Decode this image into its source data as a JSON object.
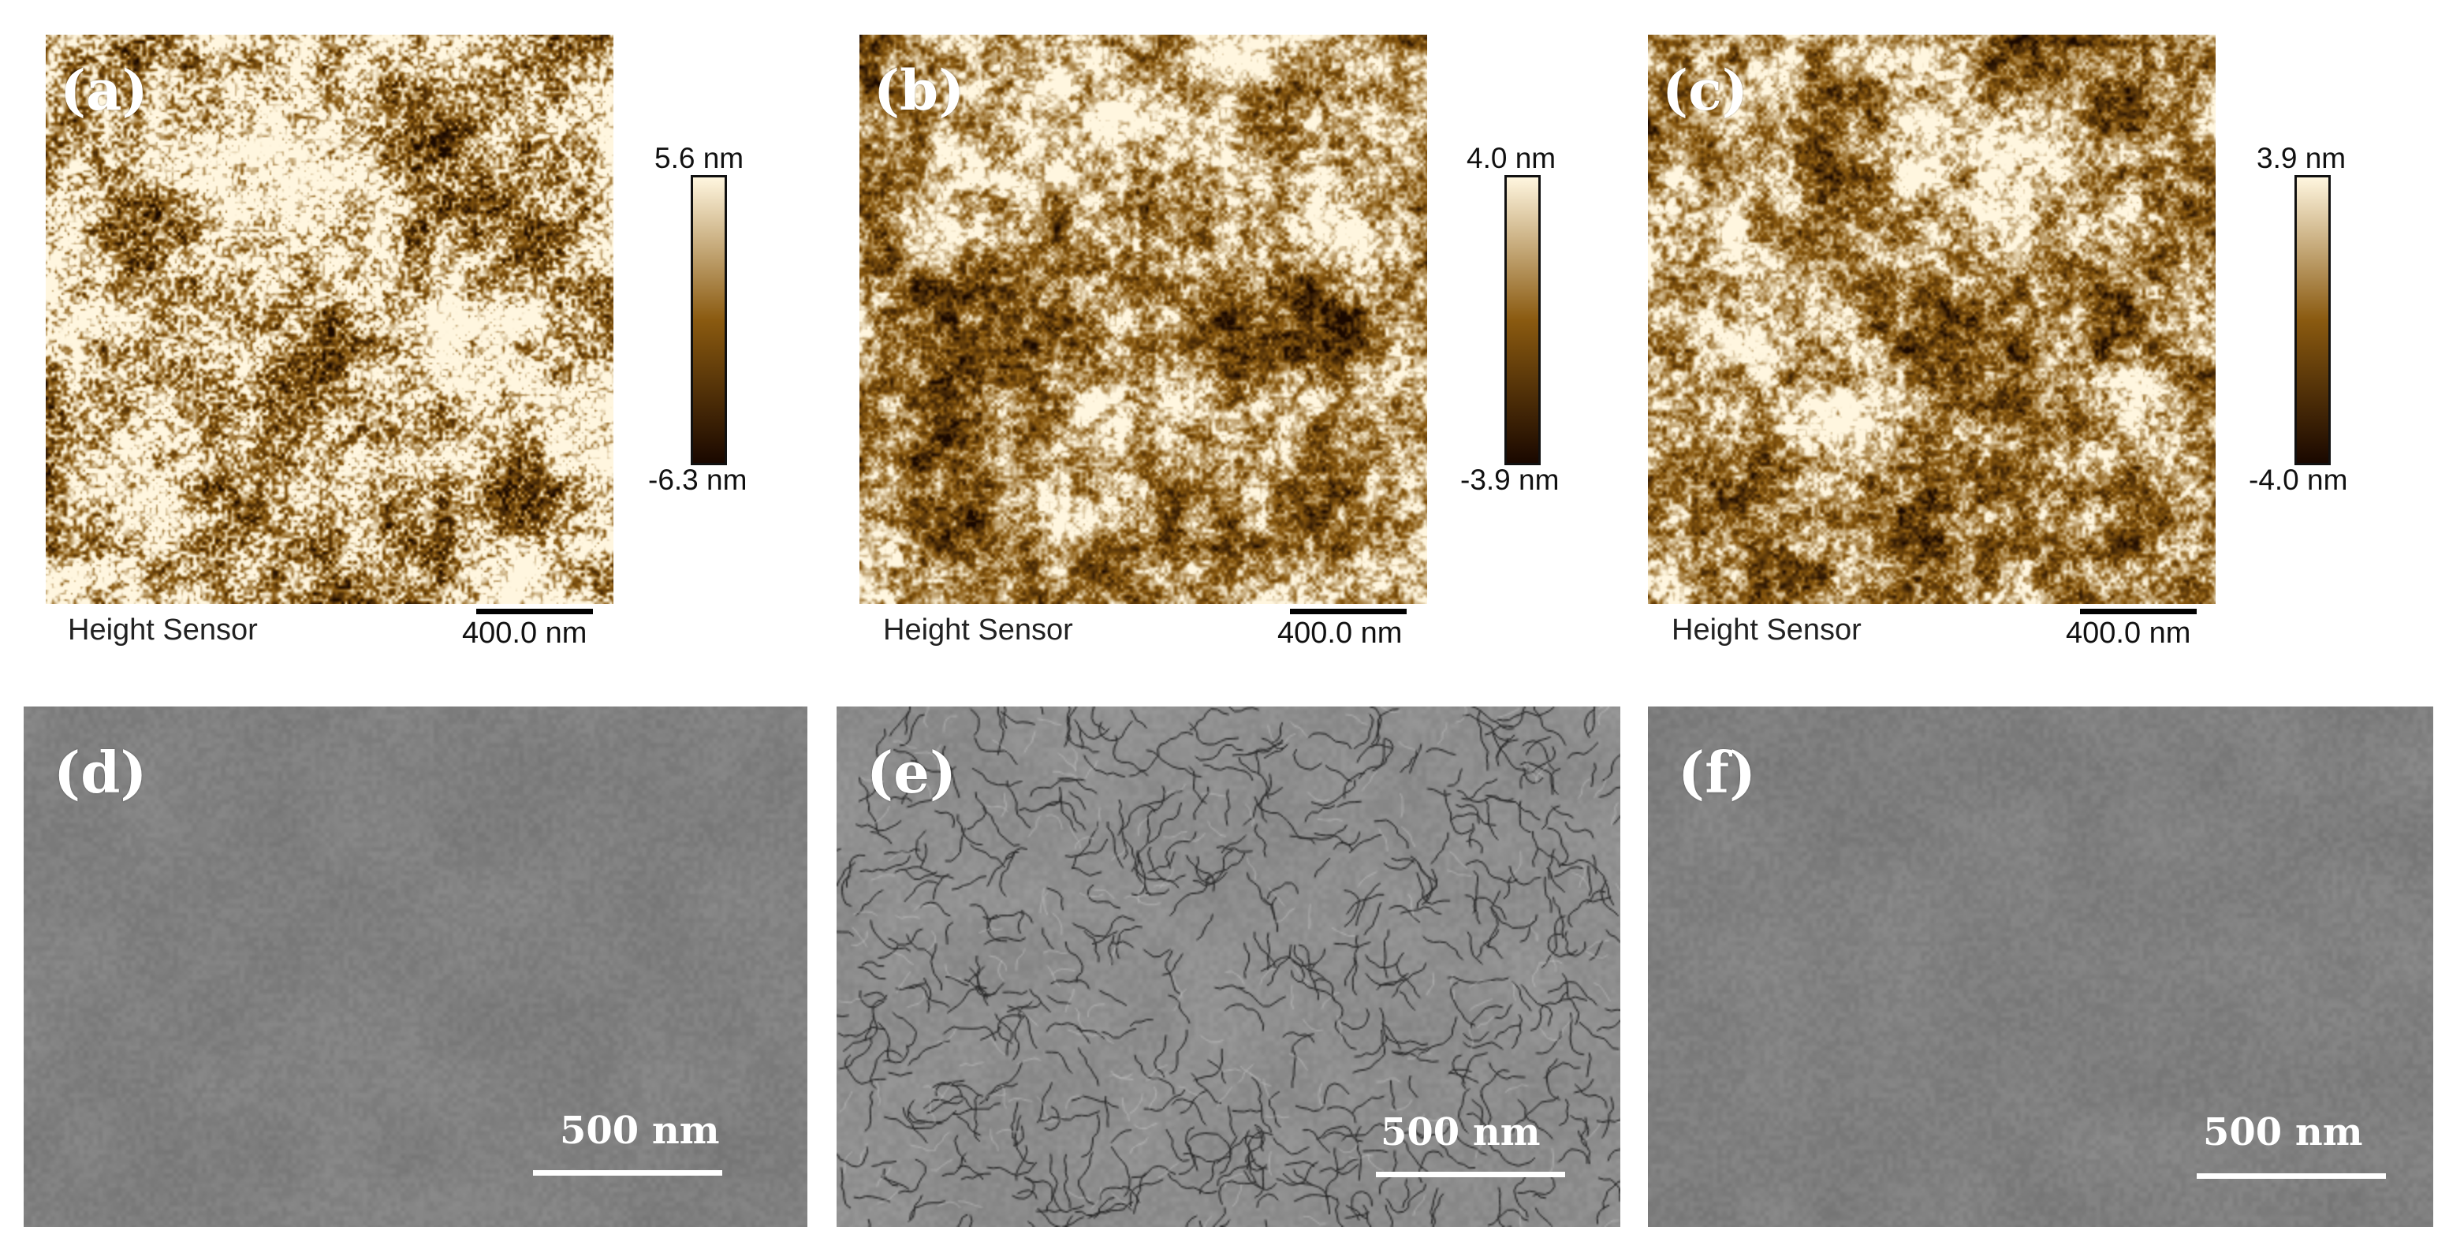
{
  "afm_panels": [
    {
      "letter": "(a)",
      "caption": "Height Sensor",
      "scale_label": "400.0 nm",
      "max_label": "5.6 nm",
      "min_label": "-6.3 nm"
    },
    {
      "letter": "(b)",
      "caption": "Height Sensor",
      "scale_label": "400.0 nm",
      "max_label": "4.0 nm",
      "min_label": "-3.9 nm"
    },
    {
      "letter": "(c)",
      "caption": "Height Sensor",
      "scale_label": "400.0 nm",
      "max_label": "3.9 nm",
      "min_label": "-4.0 nm"
    }
  ],
  "sem_panels": [
    {
      "letter": "(d)",
      "scale_label": "500 nm"
    },
    {
      "letter": "(e)",
      "scale_label": "500 nm"
    },
    {
      "letter": "(f)",
      "scale_label": "500 nm"
    }
  ],
  "colors": {
    "afm_dark": "#1a0800",
    "afm_mid": "#8a5a10",
    "afm_light": "#fff6df",
    "sem_gray": "#808080",
    "sem_crack": "#2a2a2a"
  }
}
